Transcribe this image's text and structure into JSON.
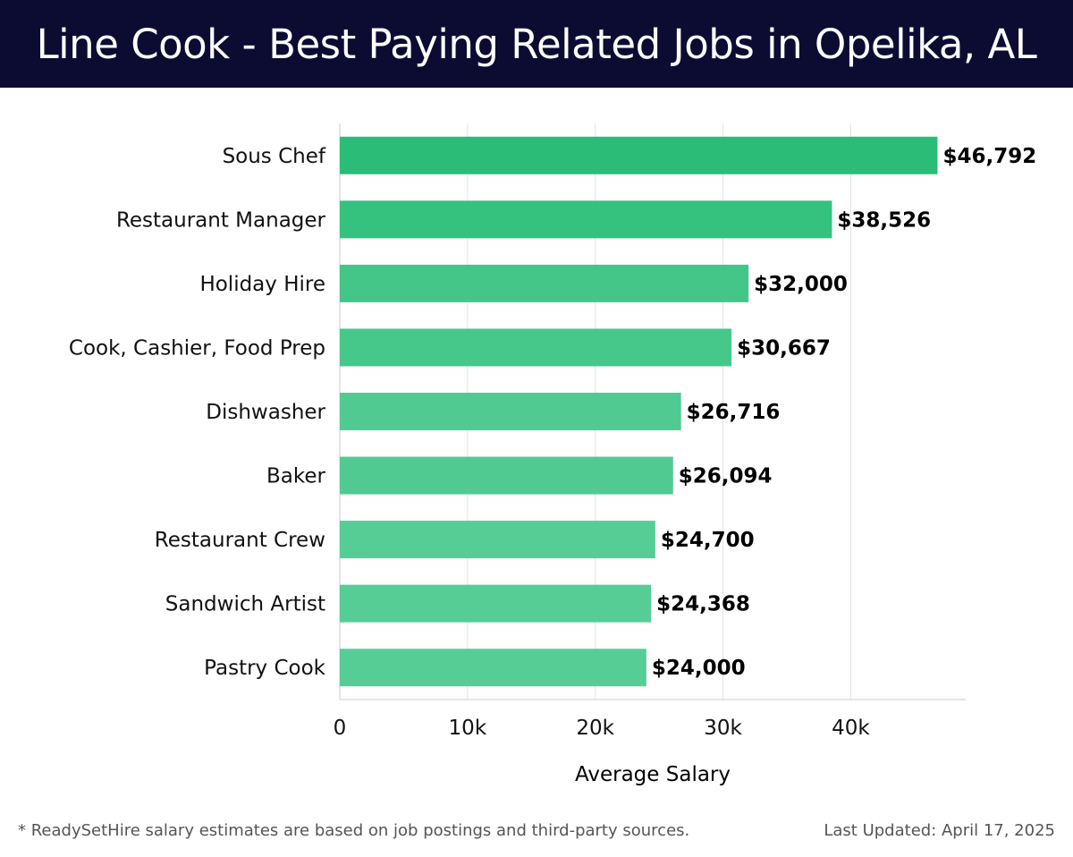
{
  "header": {
    "title": "Line Cook - Best Paying Related Jobs in Opelika, AL"
  },
  "chart_data": {
    "type": "bar",
    "orientation": "horizontal",
    "title": "Line Cook - Best Paying Related Jobs in Opelika, AL",
    "xlabel": "Average Salary",
    "ylabel": "",
    "xlim": [
      0,
      49000
    ],
    "grid": true,
    "categories": [
      "Sous Chef",
      "Restaurant Manager",
      "Holiday Hire",
      "Cook, Cashier, Food Prep",
      "Dishwasher",
      "Baker",
      "Restaurant Crew",
      "Sandwich Artist",
      "Pastry Cook"
    ],
    "values": [
      46792,
      38526,
      32000,
      30667,
      26716,
      26094,
      24700,
      24368,
      24000
    ],
    "value_labels": [
      "$46,792",
      "$38,526",
      "$32,000",
      "$30,667",
      "$26,716",
      "$26,094",
      "$24,700",
      "$24,368",
      "$24,000"
    ],
    "ticks": [
      0,
      10000,
      20000,
      30000,
      40000
    ],
    "tick_labels": [
      "0",
      "10k",
      "20k",
      "30k",
      "40k"
    ],
    "colors": [
      "#2bbd77",
      "#34c27e",
      "#45c689",
      "#47c88b",
      "#51ca92",
      "#51ca92",
      "#57cd96",
      "#57cd96",
      "#57cd96"
    ]
  },
  "footer": {
    "note": "* ReadySetHire salary estimates are based on job postings and third-party sources.",
    "updated": "Last Updated: April 17, 2025"
  }
}
